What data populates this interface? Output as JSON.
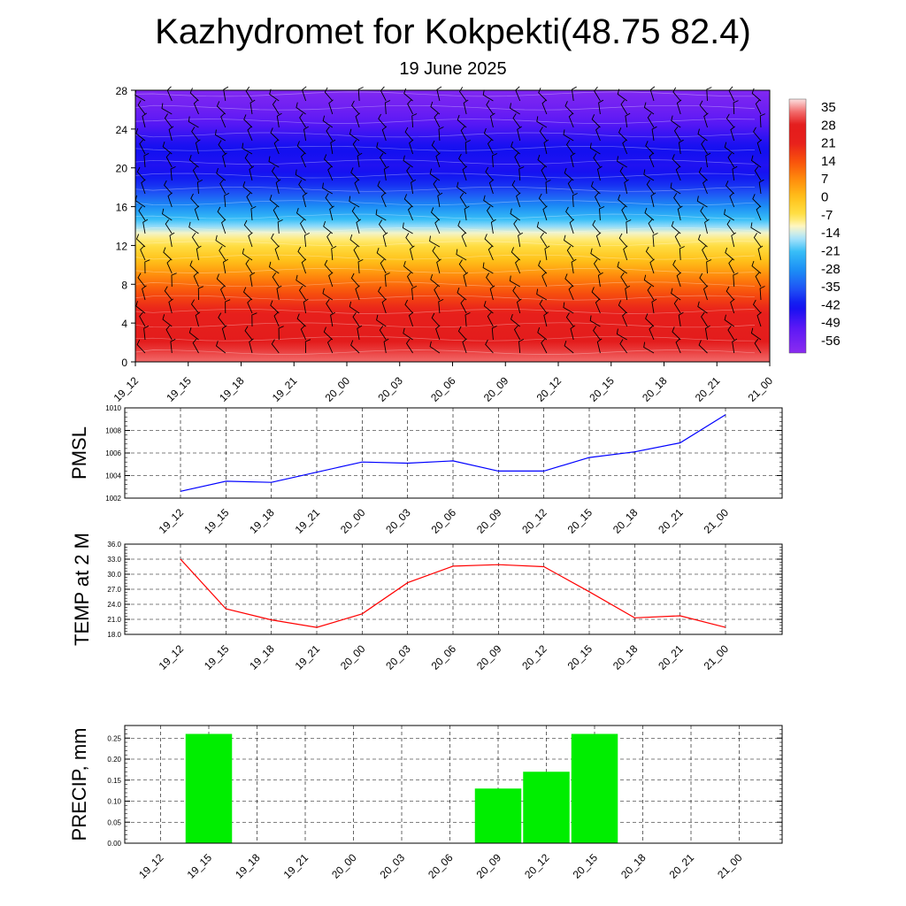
{
  "title": "Kazhydromet for Kokpekti(48.75 82.4)",
  "subtitle": "19 June 2025",
  "time_labels": [
    "19_12",
    "19_15",
    "19_18",
    "19_21",
    "20_00",
    "20_03",
    "20_06",
    "20_09",
    "20_12",
    "20_15",
    "20_18",
    "20_21",
    "21_00"
  ],
  "chart_data": [
    {
      "type": "heatmap",
      "name": "temperature-wind-cross-section",
      "x": [
        "19_12",
        "19_15",
        "19_18",
        "19_21",
        "20_00",
        "20_03",
        "20_06",
        "20_09",
        "20_12",
        "20_15",
        "20_18",
        "20_21",
        "21_00"
      ],
      "y_ticks": [
        0,
        4,
        8,
        12,
        16,
        20,
        24,
        28
      ],
      "ylim": [
        0,
        28
      ],
      "colorbar_labels": [
        "35",
        "28",
        "21",
        "14",
        "7",
        "0",
        "-7",
        "-14",
        "-21",
        "-28",
        "-35",
        "-42",
        "-49",
        "-56"
      ],
      "colorbar_range": [
        -60,
        38
      ],
      "color_stops": [
        {
          "v": -60,
          "c": "#8b2cf0"
        },
        {
          "v": -50,
          "c": "#5a18f5"
        },
        {
          "v": -42,
          "c": "#1010f0"
        },
        {
          "v": -35,
          "c": "#1f55f5"
        },
        {
          "v": -28,
          "c": "#1c8ef5"
        },
        {
          "v": -21,
          "c": "#35bdf7"
        },
        {
          "v": -15,
          "c": "#b9e9fb"
        },
        {
          "v": -11,
          "c": "#fff6c0"
        },
        {
          "v": -7,
          "c": "#ffe24a"
        },
        {
          "v": 0,
          "c": "#ffc21a"
        },
        {
          "v": 7,
          "c": "#ff8c0c"
        },
        {
          "v": 14,
          "c": "#f8520c"
        },
        {
          "v": 21,
          "c": "#e8201c"
        },
        {
          "v": 28,
          "c": "#e31c1c"
        },
        {
          "v": 33,
          "c": "#f26a6a"
        },
        {
          "v": 38,
          "c": "#fce0e0"
        }
      ],
      "vertical_profile": [
        {
          "h": 0,
          "t": 33
        },
        {
          "h": 2,
          "t": 28
        },
        {
          "h": 5,
          "t": 22
        },
        {
          "h": 8,
          "t": 11
        },
        {
          "h": 10,
          "t": 2
        },
        {
          "h": 12,
          "t": -6
        },
        {
          "h": 13.2,
          "t": -11
        },
        {
          "h": 14,
          "t": -17
        },
        {
          "h": 16,
          "t": -28
        },
        {
          "h": 18,
          "t": -38
        },
        {
          "h": 20,
          "t": -44
        },
        {
          "h": 22,
          "t": -42
        },
        {
          "h": 24,
          "t": -48
        },
        {
          "h": 26,
          "t": -54
        },
        {
          "h": 28,
          "t": -58
        }
      ],
      "colorbar_position": "right"
    },
    {
      "type": "line",
      "ylabel": "PMSL",
      "categories": [
        "19_12",
        "19_15",
        "19_18",
        "19_21",
        "20_00",
        "20_03",
        "20_06",
        "20_09",
        "20_12",
        "20_15",
        "20_18",
        "20_21",
        "21_00"
      ],
      "series": [
        {
          "values": [
            1002.6,
            1003.5,
            1003.4,
            1004.3,
            1005.2,
            1005.1,
            1005.3,
            1004.4,
            1004.4,
            1005.6,
            1006.1,
            1006.9,
            1009.4
          ],
          "color": "#0000ff"
        }
      ],
      "ylim": [
        1002,
        1010
      ],
      "y_ticks": [
        "1002",
        "1004",
        "1006",
        "1008",
        "1010"
      ],
      "grid": true
    },
    {
      "type": "line",
      "ylabel": "TEMP at 2 M",
      "categories": [
        "19_12",
        "19_15",
        "19_18",
        "19_21",
        "20_00",
        "20_03",
        "20_06",
        "20_09",
        "20_12",
        "20_15",
        "20_18",
        "20_21",
        "21_00"
      ],
      "series": [
        {
          "values": [
            33.0,
            23.1,
            20.9,
            19.4,
            22.1,
            28.3,
            31.6,
            31.9,
            31.5,
            26.5,
            21.3,
            21.7,
            19.4
          ],
          "color": "#ff0000"
        }
      ],
      "ylim": [
        18,
        36
      ],
      "y_ticks": [
        "18.0",
        "21.0",
        "24.0",
        "27.0",
        "30.0",
        "33.0",
        "36.0"
      ],
      "grid": true
    },
    {
      "type": "bar",
      "ylabel": "PRECIP, mm",
      "categories": [
        "19_12",
        "19_15",
        "19_18",
        "19_21",
        "20_00",
        "20_03",
        "20_06",
        "20_09",
        "20_12",
        "20_15",
        "20_18",
        "20_21",
        "21_00"
      ],
      "values": [
        0,
        0.26,
        0,
        0,
        0,
        0,
        0,
        0.13,
        0.17,
        0.26,
        0,
        0,
        0
      ],
      "color": "#00ee00",
      "ylim": [
        0,
        0.28
      ],
      "y_ticks": [
        "0.00",
        "0.05",
        "0.10",
        "0.15",
        "0.20",
        "0.25"
      ],
      "grid": true
    }
  ]
}
